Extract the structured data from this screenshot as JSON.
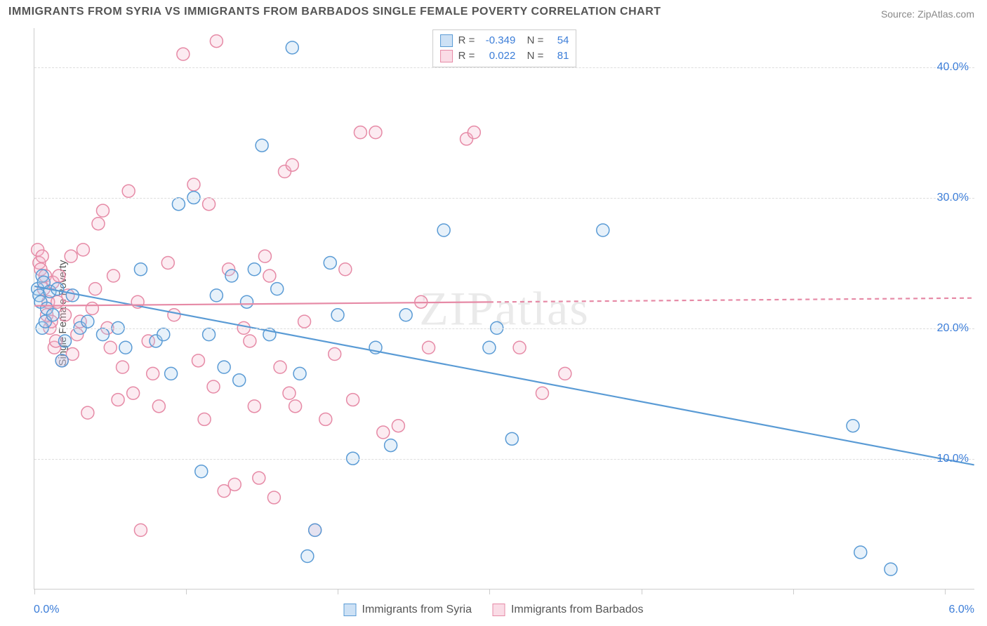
{
  "title": "IMMIGRANTS FROM SYRIA VS IMMIGRANTS FROM BARBADOS SINGLE FEMALE POVERTY CORRELATION CHART",
  "source": "Source: ZipAtlas.com",
  "watermark": "ZIPatlas",
  "yAxisLabel": "Single Female Poverty",
  "chart": {
    "type": "scatter",
    "xlim": [
      0,
      6.2
    ],
    "ylim": [
      0,
      43
    ],
    "xTicks": [
      0,
      1,
      2,
      3,
      4,
      5,
      6
    ],
    "xTickLabels": {
      "0": "0.0%",
      "6": "6.0%"
    },
    "yGrid": [
      10,
      20,
      30,
      40
    ],
    "yTickLabels": {
      "10": "10.0%",
      "20": "20.0%",
      "30": "30.0%",
      "40": "40.0%"
    },
    "background_color": "#ffffff",
    "grid_color": "#dddddd",
    "axis_color": "#cccccc",
    "tick_label_color": "#3b7dd8",
    "marker_radius": 9,
    "marker_stroke_width": 1.5,
    "marker_fill_opacity": 0.28,
    "trend_line_width": 2.2,
    "series": [
      {
        "id": "syria",
        "label": "Immigrants from Syria",
        "color_stroke": "#5a9bd5",
        "color_fill": "#a8cbee",
        "swatch_fill": "#cde1f5",
        "swatch_border": "#5a9bd5",
        "R": "-0.349",
        "N": "54",
        "trend": {
          "x1": 0.0,
          "y1": 23.2,
          "x2": 6.2,
          "y2": 9.5,
          "solid_until_x": 3.0
        },
        "points": [
          [
            0.02,
            23.0
          ],
          [
            0.03,
            22.5
          ],
          [
            0.04,
            22.0
          ],
          [
            0.05,
            24.0
          ],
          [
            0.06,
            23.5
          ],
          [
            0.08,
            21.5
          ],
          [
            0.05,
            20.0
          ],
          [
            0.07,
            20.5
          ],
          [
            0.1,
            22.8
          ],
          [
            0.12,
            21.0
          ],
          [
            0.15,
            23.0
          ],
          [
            0.18,
            17.5
          ],
          [
            0.2,
            19.0
          ],
          [
            0.25,
            22.5
          ],
          [
            0.3,
            20.0
          ],
          [
            0.35,
            20.5
          ],
          [
            0.45,
            19.5
          ],
          [
            0.55,
            20.0
          ],
          [
            0.6,
            18.5
          ],
          [
            0.7,
            24.5
          ],
          [
            0.8,
            19.0
          ],
          [
            0.85,
            19.5
          ],
          [
            0.9,
            16.5
          ],
          [
            0.95,
            29.5
          ],
          [
            1.05,
            30.0
          ],
          [
            1.1,
            9.0
          ],
          [
            1.15,
            19.5
          ],
          [
            1.2,
            22.5
          ],
          [
            1.25,
            17.0
          ],
          [
            1.3,
            24.0
          ],
          [
            1.35,
            16.0
          ],
          [
            1.4,
            22.0
          ],
          [
            1.45,
            24.5
          ],
          [
            1.5,
            34.0
          ],
          [
            1.55,
            19.5
          ],
          [
            1.6,
            23.0
          ],
          [
            1.7,
            41.5
          ],
          [
            1.75,
            16.5
          ],
          [
            1.8,
            2.5
          ],
          [
            1.85,
            4.5
          ],
          [
            1.95,
            25.0
          ],
          [
            2.0,
            21.0
          ],
          [
            2.1,
            10.0
          ],
          [
            2.25,
            18.5
          ],
          [
            2.35,
            11.0
          ],
          [
            2.45,
            21.0
          ],
          [
            2.7,
            27.5
          ],
          [
            3.0,
            18.5
          ],
          [
            3.05,
            20.0
          ],
          [
            3.15,
            11.5
          ],
          [
            3.75,
            27.5
          ],
          [
            5.4,
            12.5
          ],
          [
            5.45,
            2.8
          ],
          [
            5.65,
            1.5
          ]
        ]
      },
      {
        "id": "barbados",
        "label": "Immigrants from Barbados",
        "color_stroke": "#e68aa6",
        "color_fill": "#f5b8cb",
        "swatch_fill": "#fadce6",
        "swatch_border": "#e68aa6",
        "R": "0.022",
        "N": "81",
        "trend": {
          "x1": 0.0,
          "y1": 21.7,
          "x2": 6.2,
          "y2": 22.3,
          "solid_until_x": 3.0
        },
        "points": [
          [
            0.02,
            26.0
          ],
          [
            0.03,
            25.0
          ],
          [
            0.04,
            24.5
          ],
          [
            0.05,
            25.5
          ],
          [
            0.06,
            23.0
          ],
          [
            0.07,
            24.0
          ],
          [
            0.08,
            21.0
          ],
          [
            0.09,
            22.0
          ],
          [
            0.1,
            20.0
          ],
          [
            0.11,
            20.5
          ],
          [
            0.12,
            23.5
          ],
          [
            0.13,
            18.5
          ],
          [
            0.14,
            19.0
          ],
          [
            0.15,
            22.0
          ],
          [
            0.16,
            24.0
          ],
          [
            0.18,
            17.5
          ],
          [
            0.2,
            21.0
          ],
          [
            0.22,
            22.5
          ],
          [
            0.24,
            25.5
          ],
          [
            0.25,
            18.0
          ],
          [
            0.28,
            19.5
          ],
          [
            0.3,
            20.5
          ],
          [
            0.32,
            26.0
          ],
          [
            0.35,
            13.5
          ],
          [
            0.38,
            21.5
          ],
          [
            0.4,
            23.0
          ],
          [
            0.42,
            28.0
          ],
          [
            0.45,
            29.0
          ],
          [
            0.48,
            20.0
          ],
          [
            0.5,
            18.5
          ],
          [
            0.52,
            24.0
          ],
          [
            0.55,
            14.5
          ],
          [
            0.58,
            17.0
          ],
          [
            0.62,
            30.5
          ],
          [
            0.65,
            15.0
          ],
          [
            0.68,
            22.0
          ],
          [
            0.7,
            4.5
          ],
          [
            0.75,
            19.0
          ],
          [
            0.78,
            16.5
          ],
          [
            0.82,
            14.0
          ],
          [
            0.88,
            25.0
          ],
          [
            0.92,
            21.0
          ],
          [
            0.98,
            41.0
          ],
          [
            1.05,
            31.0
          ],
          [
            1.08,
            17.5
          ],
          [
            1.12,
            13.0
          ],
          [
            1.15,
            29.5
          ],
          [
            1.18,
            15.5
          ],
          [
            1.2,
            42.0
          ],
          [
            1.25,
            7.5
          ],
          [
            1.28,
            24.5
          ],
          [
            1.32,
            8.0
          ],
          [
            1.38,
            20.0
          ],
          [
            1.42,
            19.0
          ],
          [
            1.45,
            14.0
          ],
          [
            1.48,
            8.5
          ],
          [
            1.52,
            25.5
          ],
          [
            1.55,
            24.0
          ],
          [
            1.58,
            7.0
          ],
          [
            1.62,
            17.0
          ],
          [
            1.65,
            32.0
          ],
          [
            1.68,
            15.0
          ],
          [
            1.7,
            32.5
          ],
          [
            1.72,
            14.0
          ],
          [
            1.78,
            20.5
          ],
          [
            1.85,
            4.5
          ],
          [
            1.92,
            13.0
          ],
          [
            1.98,
            18.0
          ],
          [
            2.05,
            24.5
          ],
          [
            2.1,
            14.5
          ],
          [
            2.15,
            35.0
          ],
          [
            2.25,
            35.0
          ],
          [
            2.3,
            12.0
          ],
          [
            2.4,
            12.5
          ],
          [
            2.55,
            22.0
          ],
          [
            2.6,
            18.5
          ],
          [
            2.85,
            34.5
          ],
          [
            2.9,
            35.0
          ],
          [
            3.2,
            18.5
          ],
          [
            3.35,
            15.0
          ],
          [
            3.5,
            16.5
          ]
        ]
      }
    ]
  },
  "legendBottom": [
    {
      "label": "Immigrants from Syria",
      "seriesId": "syria"
    },
    {
      "label": "Immigrants from Barbados",
      "seriesId": "barbados"
    }
  ]
}
